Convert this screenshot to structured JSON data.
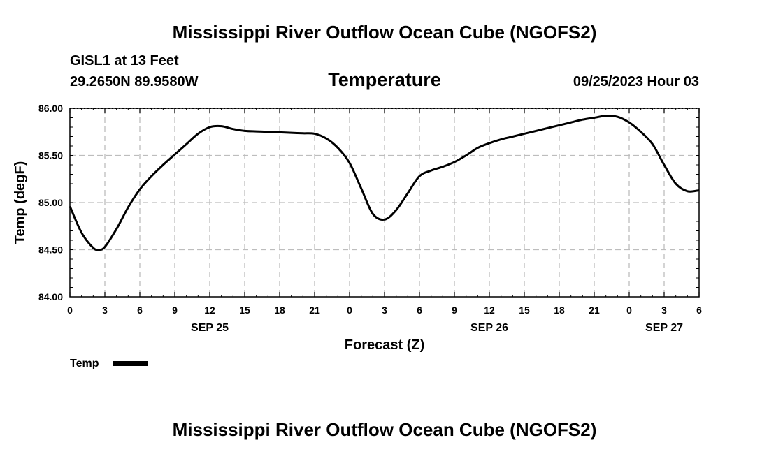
{
  "header": {
    "title_top": "Mississippi River Outflow Ocean Cube (NGOFS2)",
    "title_bottom": "Mississippi River Outflow Ocean Cube (NGOFS2)",
    "station": "GISL1 at 13 Feet",
    "coords": "29.2650N  89.9580W",
    "datetime": "09/25/2023 Hour 03"
  },
  "chart_data": {
    "type": "line",
    "title": "Temperature",
    "xlabel": "Forecast (Z)",
    "ylabel": "Temp (degF)",
    "ylim": [
      84.0,
      86.0
    ],
    "xlim": [
      0,
      54
    ],
    "yticks": [
      "84.00",
      "84.50",
      "85.00",
      "85.50",
      "86.00"
    ],
    "xtick_labels": [
      "0",
      "3",
      "6",
      "9",
      "12",
      "15",
      "18",
      "21",
      "0",
      "3",
      "6",
      "9",
      "12",
      "15",
      "18",
      "21",
      "0",
      "3",
      "6"
    ],
    "day_labels": [
      {
        "label": "SEP 25",
        "x": 12
      },
      {
        "label": "SEP 26",
        "x": 36
      },
      {
        "label": "SEP 27",
        "x": 51
      }
    ],
    "grid": true,
    "legend": {
      "position": "bottom-left",
      "label": "Temp"
    },
    "series": [
      {
        "name": "Temp",
        "color": "#000000",
        "x": [
          0,
          1,
          2,
          2.5,
          3,
          4,
          5,
          6,
          7,
          8,
          9,
          10,
          11,
          12,
          13,
          14,
          15,
          16,
          17,
          18,
          19,
          20,
          21,
          22,
          23,
          24,
          25,
          26,
          27,
          28,
          29,
          30,
          31,
          32,
          33,
          34,
          35,
          36,
          37,
          38,
          39,
          40,
          41,
          42,
          43,
          44,
          45,
          46,
          47,
          48,
          49,
          50,
          51,
          52,
          53,
          54
        ],
        "values": [
          84.96,
          84.68,
          84.52,
          84.5,
          84.53,
          84.72,
          84.95,
          85.14,
          85.28,
          85.4,
          85.51,
          85.62,
          85.73,
          85.8,
          85.81,
          85.78,
          85.76,
          85.755,
          85.75,
          85.745,
          85.74,
          85.735,
          85.73,
          85.68,
          85.58,
          85.42,
          85.15,
          84.88,
          84.82,
          84.92,
          85.1,
          85.28,
          85.34,
          85.38,
          85.43,
          85.5,
          85.58,
          85.63,
          85.67,
          85.7,
          85.73,
          85.76,
          85.79,
          85.82,
          85.85,
          85.88,
          85.9,
          85.92,
          85.91,
          85.85,
          85.75,
          85.62,
          85.4,
          85.2,
          85.12,
          85.13
        ]
      }
    ]
  }
}
